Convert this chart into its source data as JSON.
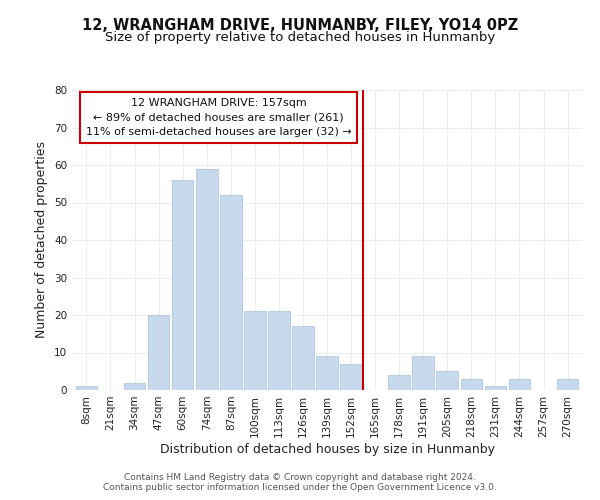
{
  "title": "12, WRANGHAM DRIVE, HUNMANBY, FILEY, YO14 0PZ",
  "subtitle": "Size of property relative to detached houses in Hunmanby",
  "xlabel": "Distribution of detached houses by size in Hunmanby",
  "ylabel": "Number of detached properties",
  "bar_labels": [
    "8sqm",
    "21sqm",
    "34sqm",
    "47sqm",
    "60sqm",
    "74sqm",
    "87sqm",
    "100sqm",
    "113sqm",
    "126sqm",
    "139sqm",
    "152sqm",
    "165sqm",
    "178sqm",
    "191sqm",
    "205sqm",
    "218sqm",
    "231sqm",
    "244sqm",
    "257sqm",
    "270sqm"
  ],
  "bar_heights": [
    1,
    0,
    2,
    20,
    56,
    59,
    52,
    21,
    21,
    17,
    9,
    7,
    0,
    4,
    9,
    5,
    3,
    1,
    3,
    0,
    3
  ],
  "bar_color": "#c8d9ed",
  "bar_edge_color": "#a8c0d8",
  "vline_x": 11.5,
  "vline_color": "#cc0000",
  "annotation_title": "12 WRANGHAM DRIVE: 157sqm",
  "annotation_line1": "← 89% of detached houses are smaller (261)",
  "annotation_line2": "11% of semi-detached houses are larger (32) →",
  "annotation_box_color": "#ffffff",
  "annotation_box_edge": "#cc0000",
  "ylim": [
    0,
    80
  ],
  "yticks": [
    0,
    10,
    20,
    30,
    40,
    50,
    60,
    70,
    80
  ],
  "footer_line1": "Contains HM Land Registry data © Crown copyright and database right 2024.",
  "footer_line2": "Contains public sector information licensed under the Open Government Licence v3.0.",
  "background_color": "#ffffff",
  "grid_color": "#e8edf2",
  "title_fontsize": 10.5,
  "subtitle_fontsize": 9.5,
  "axis_label_fontsize": 9,
  "tick_fontsize": 7.5,
  "footer_fontsize": 6.5,
  "ann_fontsize": 8.0
}
